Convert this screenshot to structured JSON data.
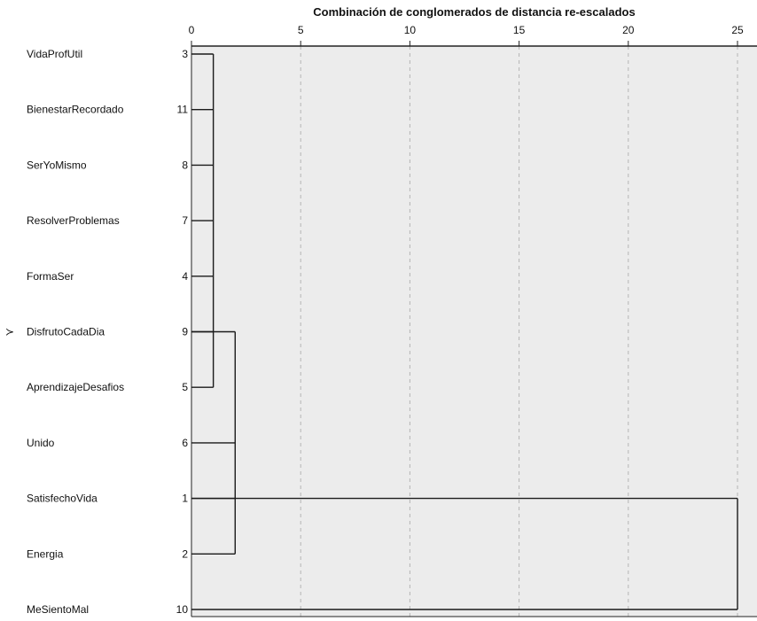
{
  "chart_data": {
    "type": "dendrogram",
    "title": "Combinación de conglomerados de distancia re-escalados",
    "x_ticks": [
      0,
      5,
      10,
      15,
      20,
      25
    ],
    "xlim": [
      0,
      25
    ],
    "grid": "vertical-dashed",
    "marker": "≻",
    "marker_row": 5,
    "leaves": [
      {
        "label": "VidaProfUtil",
        "case": "3"
      },
      {
        "label": "BienestarRecordado",
        "case": "11"
      },
      {
        "label": "SerYoMismo",
        "case": "8"
      },
      {
        "label": "ResolverProblemas",
        "case": "7"
      },
      {
        "label": "FormaSer",
        "case": "4"
      },
      {
        "label": "DisfrutoCadaDia",
        "case": "9"
      },
      {
        "label": "AprendizajeDesafios",
        "case": "5"
      },
      {
        "label": "Unido",
        "case": "6"
      },
      {
        "label": "SatisfechoVida",
        "case": "1"
      },
      {
        "label": "Energia",
        "case": "2"
      },
      {
        "label": "MeSientoMal",
        "case": "10"
      }
    ],
    "merges": [
      {
        "rows": [
          0,
          1,
          2,
          3,
          4,
          5,
          6
        ],
        "distance": 1,
        "out": 5
      },
      {
        "rows": [
          5,
          7,
          8,
          9
        ],
        "distance": 2,
        "out": 8
      },
      {
        "rows": [
          8,
          10
        ],
        "distance": 25
      }
    ]
  }
}
